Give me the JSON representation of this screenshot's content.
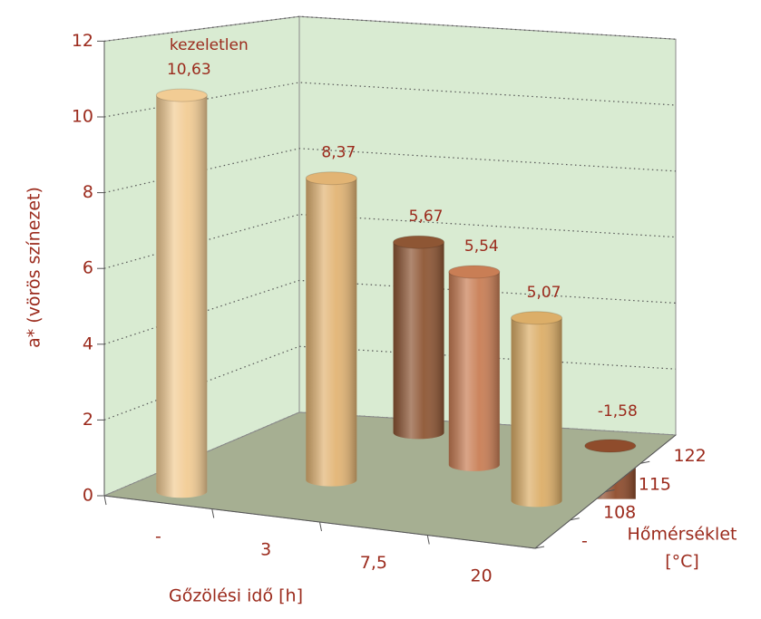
{
  "chart_data": {
    "type": "bar3d",
    "ylabel": "a* (vörös színezet)",
    "xlabel": "Gőzölési idő [h]",
    "depth_label": [
      "Hőmérséklet",
      "[°C]"
    ],
    "categories": [
      "-",
      "3",
      "7,5",
      "20"
    ],
    "depth_categories": [
      "-",
      "108",
      "115",
      "122"
    ],
    "ylim": [
      0,
      12
    ],
    "yticks": [
      0,
      2,
      4,
      6,
      8,
      10,
      12
    ],
    "grid": true,
    "bars": [
      {
        "time": "-",
        "temperature": "-",
        "value": 10.63,
        "value_label": "10,63",
        "note": "kezeletlen",
        "color": "#f2cc94"
      },
      {
        "time": "3",
        "temperature": "108",
        "value": 8.37,
        "value_label": "8,37",
        "color": "#e2b474"
      },
      {
        "time": "3",
        "temperature": "122",
        "value": 5.67,
        "value_label": "5,67",
        "color": "#8e5634"
      },
      {
        "time": "7,5",
        "temperature": "115",
        "value": 5.54,
        "value_label": "5,54",
        "color": "#c97e55"
      },
      {
        "time": "20",
        "temperature": "108",
        "value": 5.07,
        "value_label": "5,07",
        "color": "#dcae68"
      },
      {
        "time": "20",
        "temperature": "122",
        "value": -1.58,
        "value_label": "-1,58",
        "color": "#8f4c2c"
      }
    ]
  }
}
